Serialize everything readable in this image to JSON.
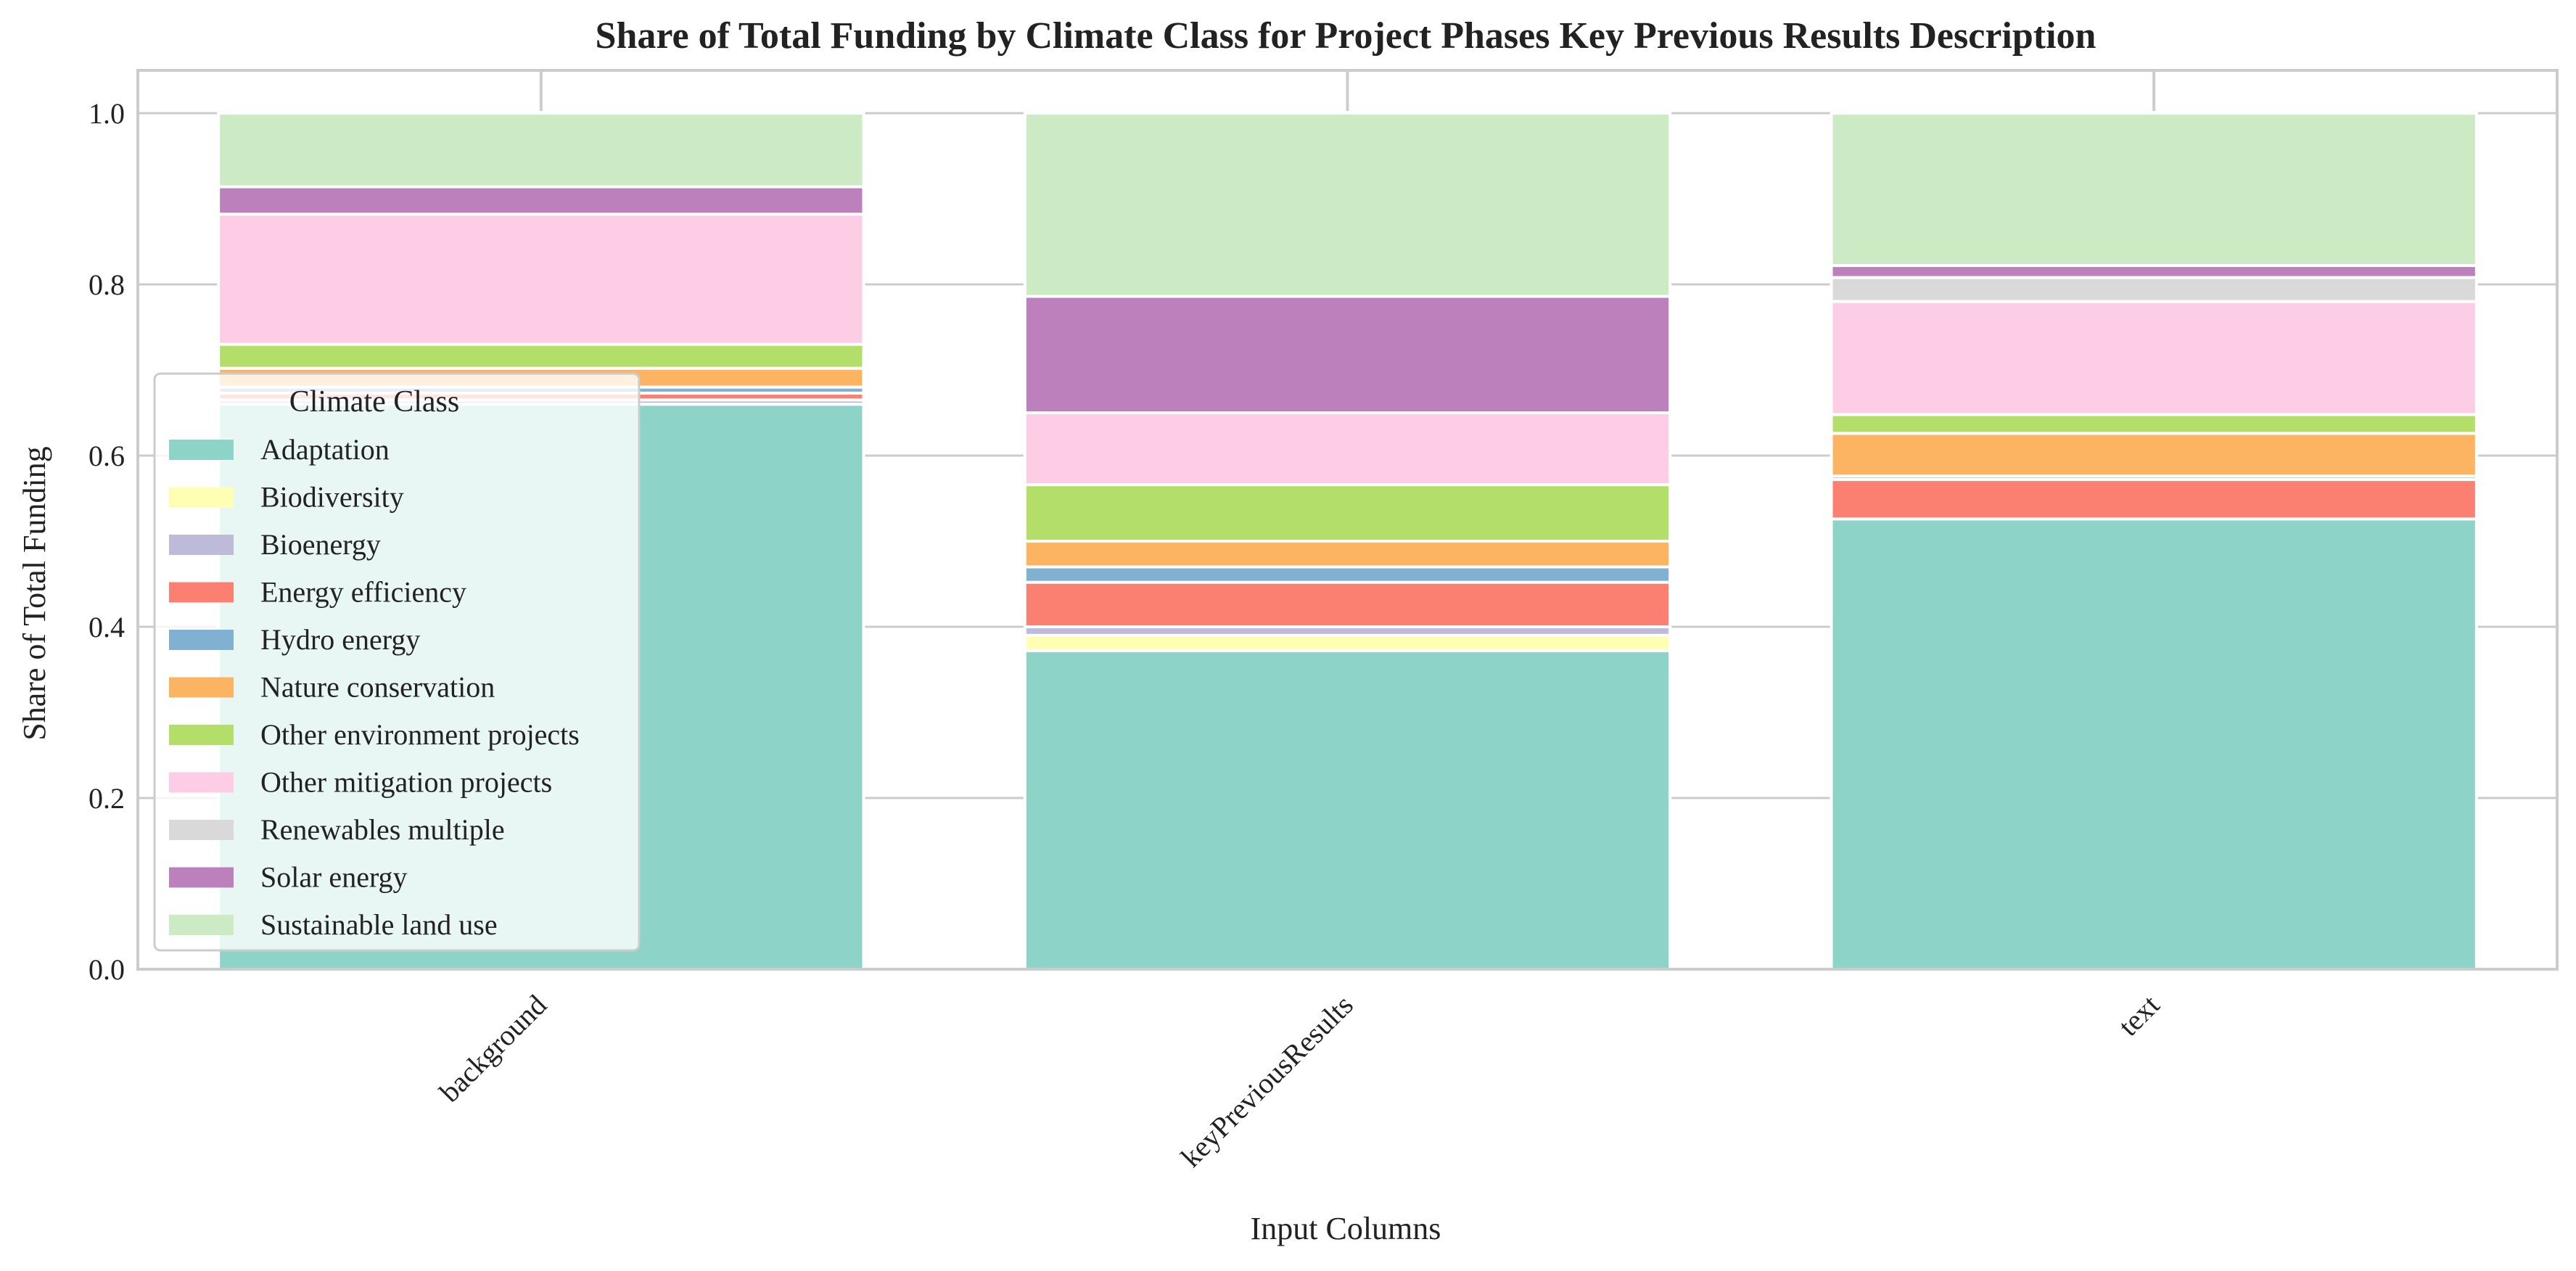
{
  "chart_data": {
    "type": "bar",
    "stacked": true,
    "title": "Share of Total Funding by Climate Class for Project Phases Key Previous Results Description",
    "xlabel": "Input Columns",
    "ylabel": "Share of Total Funding",
    "ylim": [
      0,
      1.05
    ],
    "yticks": [
      "0.0",
      "0.2",
      "0.4",
      "0.6",
      "0.8",
      "1.0"
    ],
    "categories": [
      "background",
      "keyPreviousResults",
      "text"
    ],
    "grid": true,
    "legend": {
      "title": "Climate Class",
      "position": "center-left"
    },
    "series": [
      {
        "name": "Adaptation",
        "color": "#8dd3c7",
        "values": [
          0.66,
          0.372,
          0.526
        ]
      },
      {
        "name": "Biodiversity",
        "color": "#ffffb3",
        "values": [
          0.0,
          0.018,
          0.0
        ]
      },
      {
        "name": "Bioenergy",
        "color": "#bebada",
        "values": [
          0.005,
          0.01,
          0.0
        ]
      },
      {
        "name": "Energy efficiency",
        "color": "#fb8072",
        "values": [
          0.008,
          0.052,
          0.046
        ]
      },
      {
        "name": "Hydro energy",
        "color": "#80b1d3",
        "values": [
          0.007,
          0.018,
          0.004
        ]
      },
      {
        "name": "Nature conservation",
        "color": "#fdb462",
        "values": [
          0.022,
          0.03,
          0.05
        ]
      },
      {
        "name": "Other environment projects",
        "color": "#b3de69",
        "values": [
          0.028,
          0.066,
          0.022
        ]
      },
      {
        "name": "Other mitigation projects",
        "color": "#fccde5",
        "values": [
          0.152,
          0.084,
          0.132
        ]
      },
      {
        "name": "Renewables multiple",
        "color": "#d9d9d9",
        "values": [
          0.0,
          0.0,
          0.028
        ]
      },
      {
        "name": "Solar energy",
        "color": "#bc80bd",
        "values": [
          0.032,
          0.136,
          0.014
        ]
      },
      {
        "name": "Sustainable land use",
        "color": "#ccebc5",
        "values": [
          0.086,
          0.214,
          0.178
        ]
      }
    ]
  }
}
